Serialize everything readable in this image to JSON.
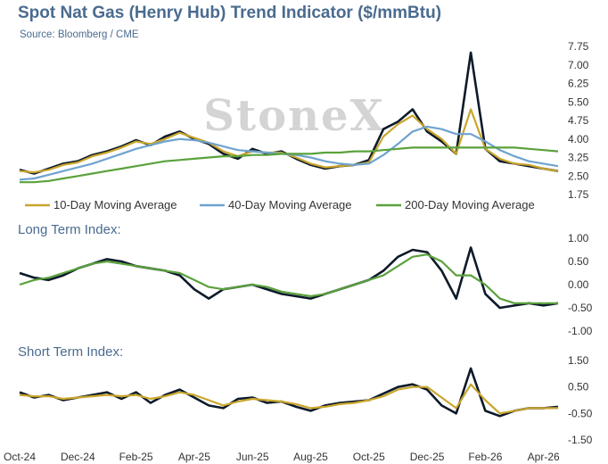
{
  "header": {
    "title": "Spot Nat Gas (Henry Hub) Trend Indicator ($/mmBtu)",
    "source": "Source: Bloomberg / CME"
  },
  "watermark": "StoneX",
  "colors": {
    "price": "#0d1a2a",
    "ma10": "#c9a62c",
    "ma40": "#6fa3cf",
    "ma200": "#5aa23c",
    "accent": "#4a6b8f"
  },
  "chart_data": [
    {
      "type": "line",
      "title": "Spot Nat Gas (Henry Hub) Trend Indicator ($/mmBtu)",
      "ylim": [
        1.75,
        7.75
      ],
      "yticks": [
        "7.75",
        "7.00",
        "6.25",
        "5.50",
        "4.75",
        "4.00",
        "3.25",
        "2.50",
        "1.75"
      ],
      "ytick_values": [
        7.75,
        7.0,
        6.25,
        5.5,
        4.75,
        4.0,
        3.25,
        2.5,
        1.75
      ],
      "x": [
        0,
        0.5,
        1,
        1.5,
        2,
        2.5,
        3,
        3.5,
        4,
        4.5,
        5,
        5.5,
        6,
        6.5,
        7,
        7.5,
        8,
        8.5,
        9,
        9.5,
        10,
        10.5,
        11,
        11.5,
        12,
        12.5,
        13,
        13.5,
        14,
        14.5,
        15,
        15.5,
        16,
        16.5,
        17,
        17.5,
        18,
        18.5
      ],
      "series": [
        {
          "name": "Spot",
          "color": "#0d1a2a",
          "values": [
            2.75,
            2.6,
            2.8,
            3.0,
            3.1,
            3.35,
            3.5,
            3.7,
            3.95,
            3.75,
            4.1,
            4.3,
            4.0,
            3.8,
            3.4,
            3.2,
            3.6,
            3.4,
            3.5,
            3.2,
            2.95,
            2.8,
            2.9,
            2.95,
            3.15,
            4.4,
            4.7,
            5.2,
            4.3,
            3.9,
            3.4,
            7.5,
            3.6,
            3.1,
            3.0,
            2.9,
            2.8,
            2.7
          ]
        },
        {
          "name": "10-Day Moving Average",
          "color": "#c9a62c",
          "values": [
            2.7,
            2.65,
            2.75,
            2.95,
            3.05,
            3.3,
            3.45,
            3.65,
            3.9,
            3.8,
            4.0,
            4.25,
            4.05,
            3.85,
            3.5,
            3.3,
            3.5,
            3.45,
            3.45,
            3.25,
            3.0,
            2.85,
            2.9,
            2.95,
            3.05,
            4.1,
            4.6,
            4.95,
            4.4,
            4.0,
            3.4,
            5.2,
            3.6,
            3.2,
            3.0,
            2.95,
            2.8,
            2.7
          ]
        },
        {
          "name": "40-Day Moving Average",
          "color": "#6fa3cf",
          "values": [
            2.35,
            2.4,
            2.55,
            2.7,
            2.85,
            3.0,
            3.2,
            3.4,
            3.6,
            3.75,
            3.9,
            4.0,
            3.95,
            3.85,
            3.7,
            3.55,
            3.5,
            3.45,
            3.4,
            3.35,
            3.25,
            3.1,
            3.0,
            2.95,
            3.0,
            3.35,
            3.8,
            4.3,
            4.5,
            4.4,
            4.2,
            4.2,
            3.9,
            3.55,
            3.3,
            3.1,
            3.0,
            2.9
          ]
        },
        {
          "name": "200-Day Moving Average",
          "color": "#5aa23c",
          "values": [
            2.25,
            2.25,
            2.3,
            2.4,
            2.5,
            2.6,
            2.7,
            2.8,
            2.9,
            3.0,
            3.1,
            3.15,
            3.2,
            3.25,
            3.3,
            3.3,
            3.35,
            3.35,
            3.4,
            3.4,
            3.4,
            3.45,
            3.45,
            3.5,
            3.5,
            3.55,
            3.6,
            3.65,
            3.65,
            3.65,
            3.65,
            3.65,
            3.65,
            3.65,
            3.65,
            3.6,
            3.55,
            3.5
          ]
        }
      ],
      "legend": [
        "10-Day Moving Average",
        "40-Day Moving Average",
        "200-Day Moving Average"
      ],
      "legend_placement": "bottom"
    },
    {
      "type": "line",
      "title": "Long Term Index:",
      "ylim": [
        -1.0,
        1.0
      ],
      "yticks": [
        "1.00",
        "0.50",
        "0.00",
        "-0.50",
        "-1.00"
      ],
      "ytick_values": [
        1.0,
        0.5,
        0.0,
        -0.5,
        -1.0
      ],
      "x": [
        0,
        0.5,
        1,
        1.5,
        2,
        2.5,
        3,
        3.5,
        4,
        4.5,
        5,
        5.5,
        6,
        6.5,
        7,
        7.5,
        8,
        8.5,
        9,
        9.5,
        10,
        10.5,
        11,
        11.5,
        12,
        12.5,
        13,
        13.5,
        14,
        14.5,
        15,
        15.5,
        16,
        16.5,
        17,
        17.5,
        18,
        18.5
      ],
      "series": [
        {
          "color": "#0d1a2a",
          "values": [
            0.25,
            0.15,
            0.1,
            0.2,
            0.35,
            0.45,
            0.55,
            0.5,
            0.4,
            0.35,
            0.3,
            0.2,
            -0.1,
            -0.3,
            -0.1,
            -0.05,
            0.0,
            -0.1,
            -0.2,
            -0.25,
            -0.3,
            -0.2,
            -0.1,
            0.0,
            0.1,
            0.3,
            0.6,
            0.75,
            0.7,
            0.3,
            -0.3,
            0.8,
            -0.2,
            -0.5,
            -0.45,
            -0.4,
            -0.45,
            -0.4
          ]
        },
        {
          "color": "#5aa23c",
          "values": [
            0.0,
            0.1,
            0.15,
            0.25,
            0.35,
            0.45,
            0.5,
            0.45,
            0.4,
            0.35,
            0.3,
            0.25,
            0.1,
            -0.05,
            -0.1,
            -0.05,
            0.0,
            -0.05,
            -0.15,
            -0.2,
            -0.25,
            -0.2,
            -0.1,
            0.0,
            0.1,
            0.2,
            0.4,
            0.6,
            0.65,
            0.5,
            0.2,
            0.2,
            0.0,
            -0.3,
            -0.4,
            -0.4,
            -0.4,
            -0.4
          ]
        }
      ]
    },
    {
      "type": "line",
      "title": "Short Term Index:",
      "ylim": [
        -1.5,
        1.5
      ],
      "yticks": [
        "1.50",
        "0.50",
        "-0.50",
        "-1.50"
      ],
      "ytick_values": [
        1.5,
        0.5,
        -0.5,
        -1.5
      ],
      "x": [
        0,
        0.5,
        1,
        1.5,
        2,
        2.5,
        3,
        3.5,
        4,
        4.5,
        5,
        5.5,
        6,
        6.5,
        7,
        7.5,
        8,
        8.5,
        9,
        9.5,
        10,
        10.5,
        11,
        11.5,
        12,
        12.5,
        13,
        13.5,
        14,
        14.5,
        15,
        15.5,
        16,
        16.5,
        17,
        17.5,
        18,
        18.5
      ],
      "series": [
        {
          "color": "#0d1a2a",
          "values": [
            0.3,
            0.1,
            0.2,
            0.0,
            0.1,
            0.2,
            0.3,
            0.05,
            0.3,
            -0.1,
            0.2,
            0.4,
            0.1,
            -0.2,
            -0.3,
            0.05,
            0.1,
            -0.1,
            -0.05,
            -0.25,
            -0.4,
            -0.2,
            -0.1,
            -0.05,
            0.0,
            0.25,
            0.5,
            0.6,
            0.4,
            -0.2,
            -0.5,
            1.2,
            -0.4,
            -0.6,
            -0.4,
            -0.3,
            -0.3,
            -0.25
          ]
        },
        {
          "color": "#c9a62c",
          "values": [
            0.2,
            0.15,
            0.15,
            0.05,
            0.1,
            0.15,
            0.2,
            0.15,
            0.2,
            0.05,
            0.15,
            0.3,
            0.2,
            0.0,
            -0.2,
            -0.05,
            0.05,
            0.0,
            -0.05,
            -0.15,
            -0.3,
            -0.25,
            -0.15,
            -0.1,
            0.0,
            0.15,
            0.4,
            0.5,
            0.5,
            0.1,
            -0.3,
            0.6,
            0.0,
            -0.5,
            -0.4,
            -0.3,
            -0.3,
            -0.3
          ]
        }
      ]
    }
  ],
  "x_axis": {
    "labels": [
      "Oct-24",
      "Dec-24",
      "Feb-25",
      "Apr-25",
      "Jun-25",
      "Aug-25",
      "Oct-25",
      "Dec-25",
      "Feb-26",
      "Apr-26"
    ],
    "positions": [
      0,
      2,
      4,
      6,
      8,
      10,
      12,
      14,
      16,
      18
    ]
  }
}
